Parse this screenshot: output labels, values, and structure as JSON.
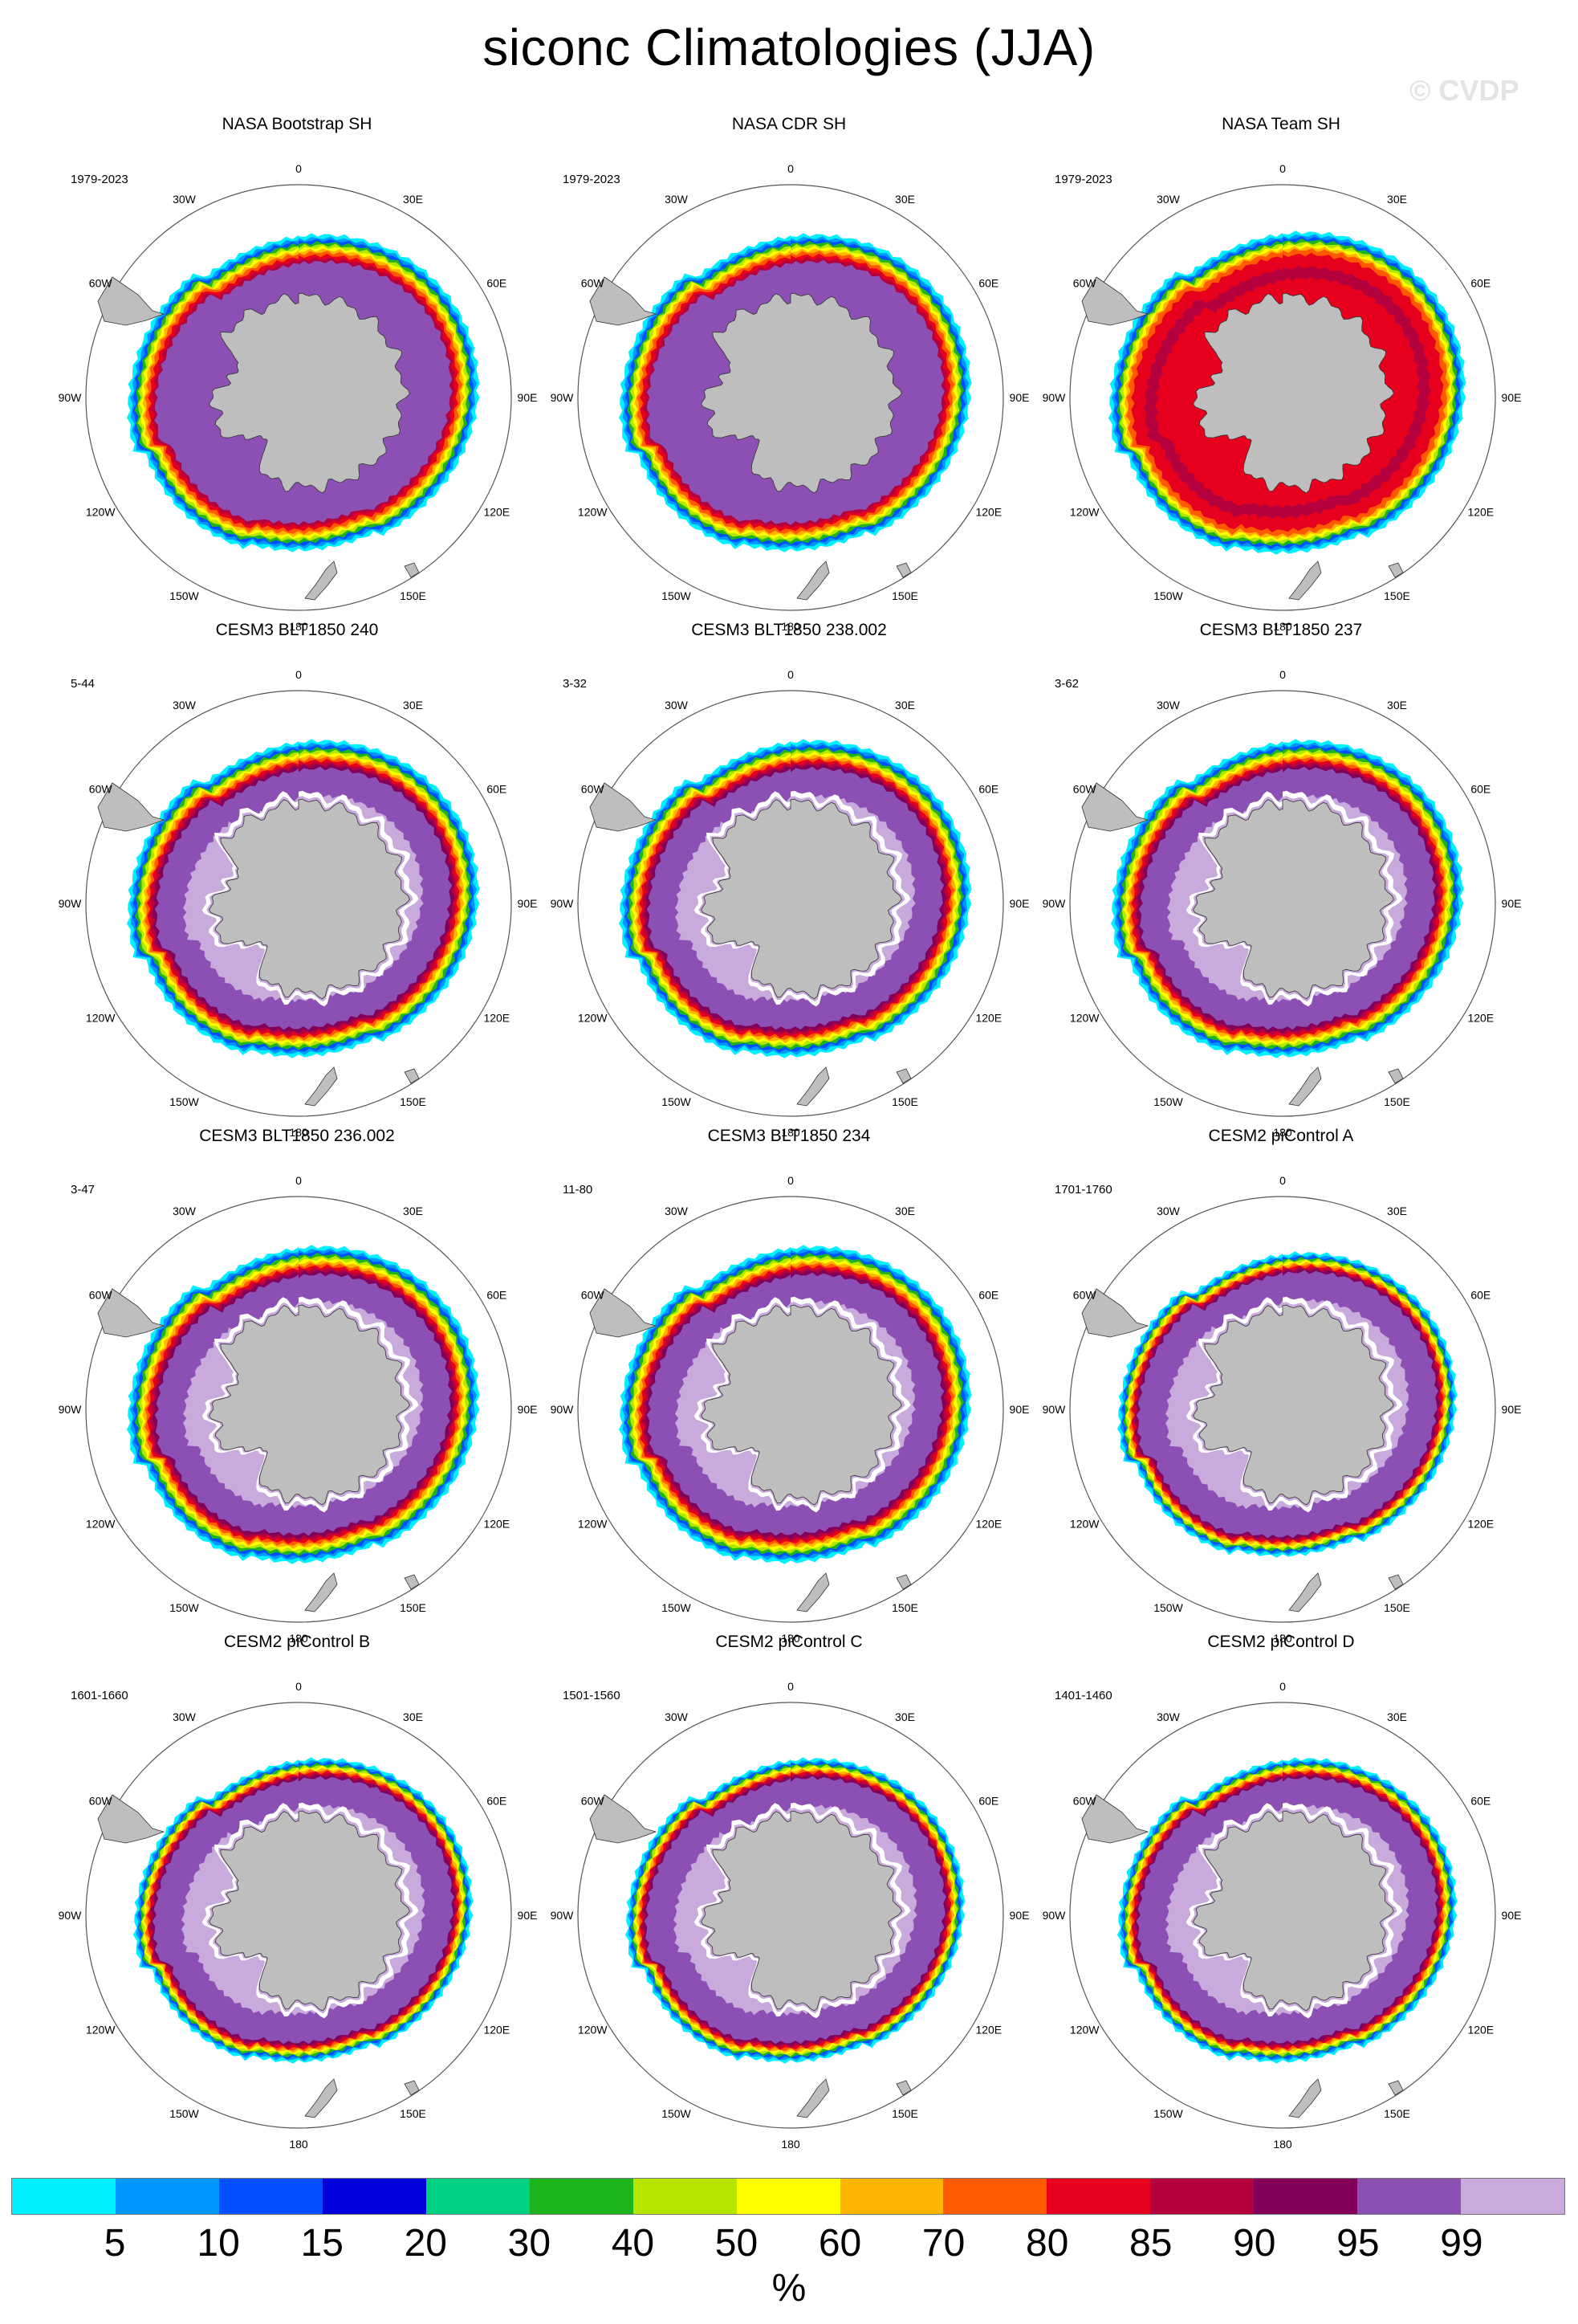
{
  "title": "siconc Climatologies (JJA)",
  "watermark": "© CVDP",
  "lon_labels": [
    "0",
    "30E",
    "60E",
    "90E",
    "120E",
    "150E",
    "180",
    "150W",
    "120W",
    "90W",
    "60W",
    "30W"
  ],
  "panels": [
    {
      "title": "NASA Bootstrap SH",
      "period": "1979-2023",
      "style": "obs"
    },
    {
      "title": "NASA CDR SH",
      "period": "1979-2023",
      "style": "obs"
    },
    {
      "title": "NASA Team SH",
      "period": "1979-2023",
      "style": "team"
    },
    {
      "title": "CESM3 BLT1850 240",
      "period": "5-44",
      "style": "cesm3"
    },
    {
      "title": "CESM3 BLT1850 238.002",
      "period": "3-32",
      "style": "cesm3"
    },
    {
      "title": "CESM3 BLT1850 237",
      "period": "3-62",
      "style": "cesm3"
    },
    {
      "title": "CESM3 BLT1850 236.002",
      "period": "3-47",
      "style": "cesm3"
    },
    {
      "title": "CESM3 BLT1850 234",
      "period": "11-80",
      "style": "cesm3"
    },
    {
      "title": "CESM2 piControl A",
      "period": "1701-1760",
      "style": "cesm2"
    },
    {
      "title": "CESM2 piControl B",
      "period": "1601-1660",
      "style": "cesm2"
    },
    {
      "title": "CESM2 piControl C",
      "period": "1501-1560",
      "style": "cesm2"
    },
    {
      "title": "CESM2 piControl D",
      "period": "1401-1460",
      "style": "cesm2"
    }
  ],
  "colorbar": {
    "colors": [
      "#00f0ff",
      "#0096ff",
      "#0050ff",
      "#0000dc",
      "#00d282",
      "#1eb41e",
      "#b4e600",
      "#ffff00",
      "#ffb400",
      "#ff5a00",
      "#e6001e",
      "#b4003c",
      "#82005a",
      "#8c50b4",
      "#c8aadc"
    ],
    "tick_labels": [
      "5",
      "10",
      "15",
      "20",
      "30",
      "40",
      "50",
      "60",
      "70",
      "80",
      "85",
      "90",
      "95",
      "99"
    ],
    "units": "%"
  }
}
